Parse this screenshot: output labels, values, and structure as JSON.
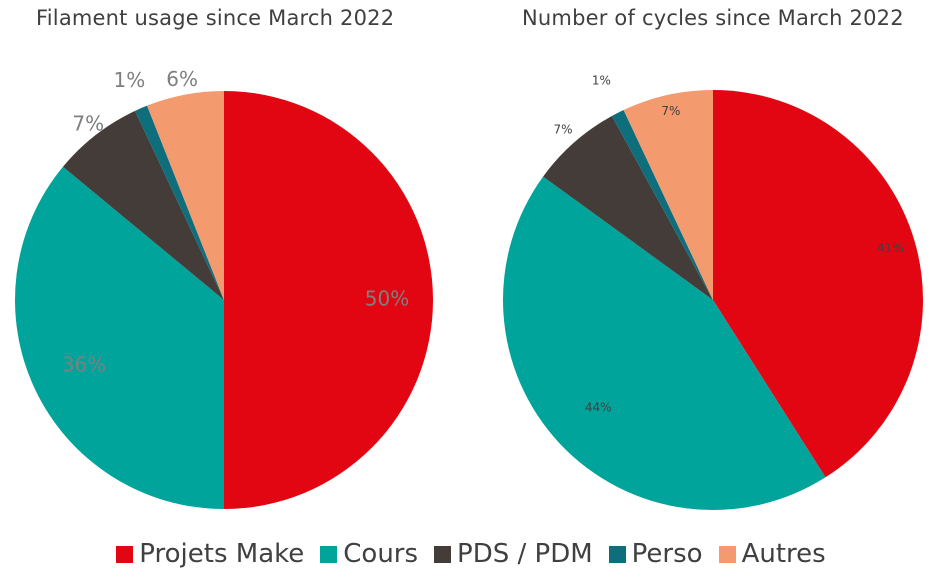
{
  "chart_data": [
    {
      "type": "pie",
      "title": "Filament usage since March 2022",
      "categories": [
        "Projets Make",
        "Cours",
        "PDS / PDM",
        "Perso",
        "Autres"
      ],
      "values": [
        50,
        36,
        7,
        1,
        6
      ],
      "labels": [
        "50%",
        "36%",
        "7%",
        "1%",
        "6%"
      ],
      "label_color": "#7f7f7f"
    },
    {
      "type": "pie",
      "title": "Number of cycles since March 2022",
      "categories": [
        "Projets Make",
        "Cours",
        "PDS / PDM",
        "Perso",
        "Autres"
      ],
      "values": [
        41,
        44,
        7,
        1,
        7
      ],
      "labels": [
        "41%",
        "44%",
        "7%",
        "1%",
        "7%"
      ],
      "label_color": "#404040"
    }
  ],
  "legend": {
    "placement": "bottom",
    "items": [
      {
        "label": "Projets Make",
        "color": "#e20613"
      },
      {
        "label": "Cours",
        "color": "#00a49a"
      },
      {
        "label": "PDS / PDM",
        "color": "#433c39"
      },
      {
        "label": "Perso",
        "color": "#0f6e7c"
      },
      {
        "label": "Autres",
        "color": "#f39a6f"
      }
    ]
  }
}
